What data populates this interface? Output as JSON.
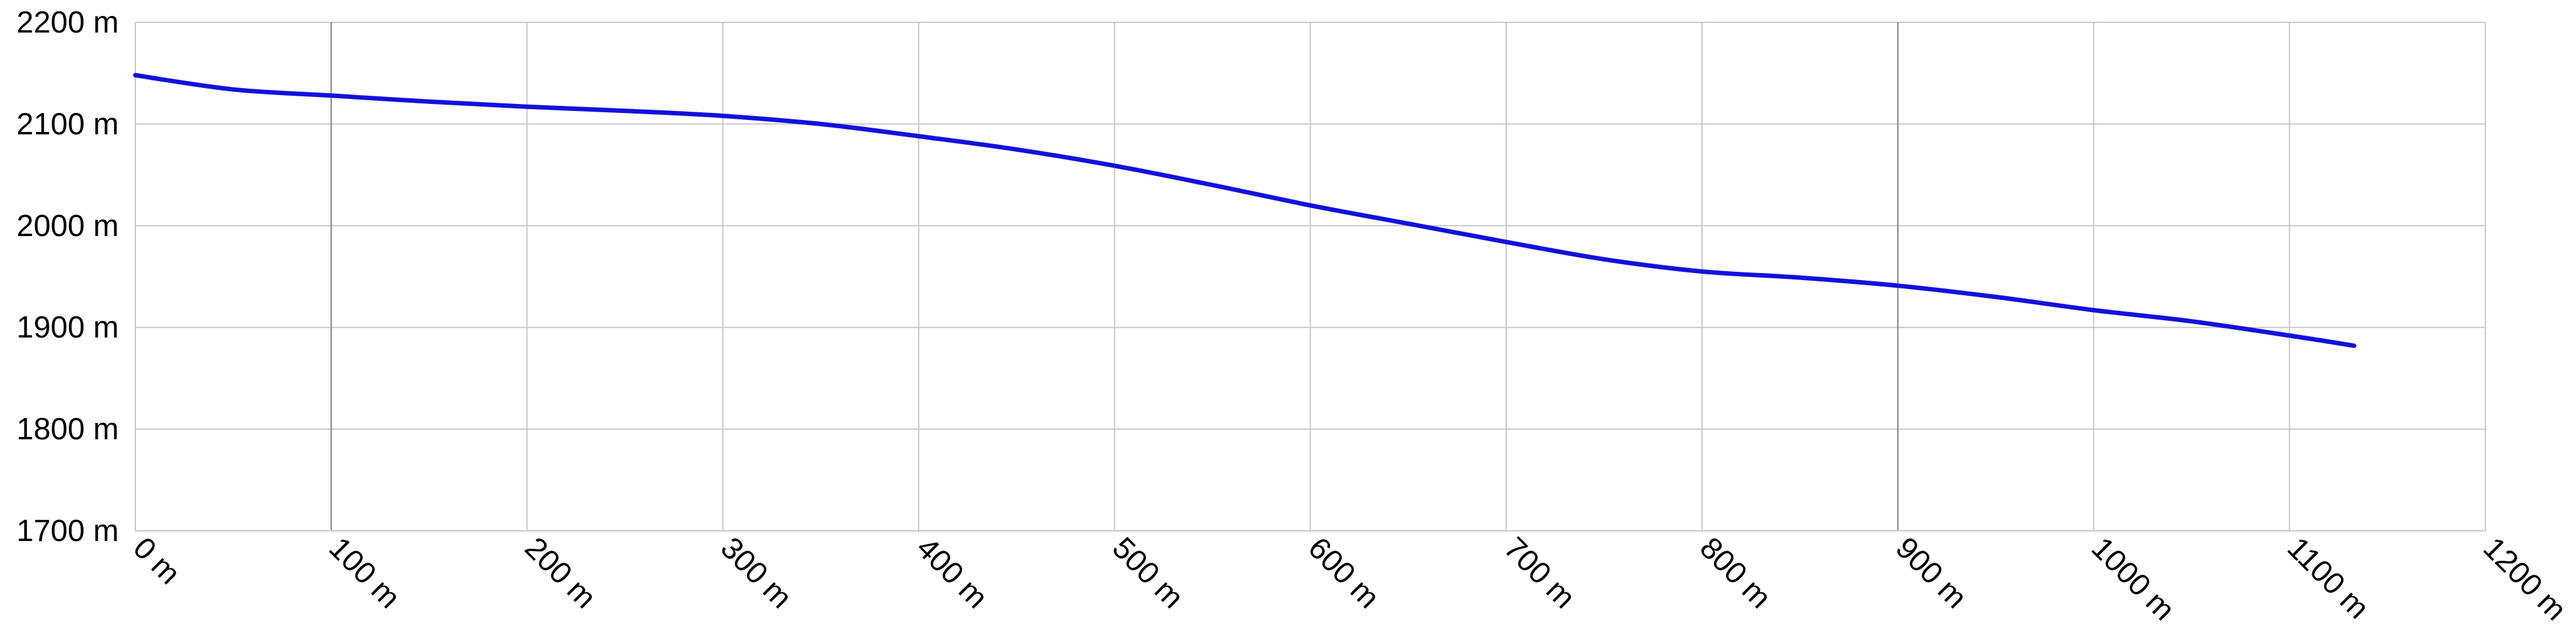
{
  "chart_data": {
    "type": "line",
    "title": "",
    "xlabel": "",
    "ylabel": "",
    "x_unit": "m",
    "y_unit": "m",
    "xlim": [
      0,
      1200
    ],
    "ylim": [
      1700,
      2200
    ],
    "x_ticks": [
      0,
      100,
      200,
      300,
      400,
      500,
      600,
      700,
      800,
      900,
      1000,
      1100,
      1200
    ],
    "y_ticks": [
      1700,
      1800,
      1900,
      2000,
      2100,
      2200
    ],
    "x_tick_labels": [
      "0 m",
      "100 m",
      "200 m",
      "300 m",
      "400 m",
      "500 m",
      "600 m",
      "700 m",
      "800 m",
      "900 m",
      "1000 m",
      "1100 m",
      "1200 m"
    ],
    "y_tick_labels": [
      "1700 m",
      "1800 m",
      "1900 m",
      "2000 m",
      "2100 m",
      "2200 m"
    ],
    "grid": true,
    "legend": "none",
    "series": [
      {
        "color": "#1111dd",
        "x": [
          0,
          50,
          100,
          150,
          200,
          250,
          300,
          350,
          400,
          450,
          500,
          550,
          600,
          650,
          700,
          750,
          800,
          850,
          900,
          950,
          1000,
          1050,
          1100,
          1133
        ],
        "y": [
          2148,
          2134,
          2128,
          2122,
          2117,
          2113,
          2108,
          2100,
          2088,
          2075,
          2059,
          2040,
          2020,
          2002,
          1984,
          1967,
          1955,
          1949,
          1941,
          1930,
          1917,
          1906,
          1892,
          1882
        ]
      }
    ]
  }
}
